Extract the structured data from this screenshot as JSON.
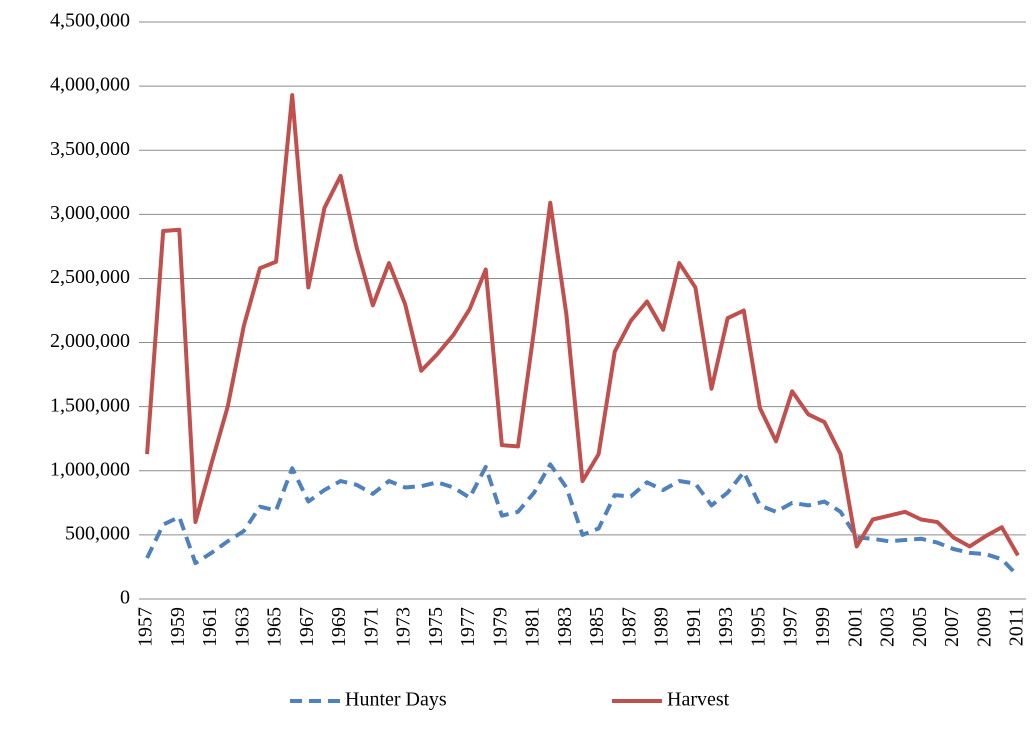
{
  "chart_data": {
    "type": "line",
    "categories": [
      "1957",
      null,
      "1959",
      null,
      "1961",
      null,
      "1963",
      null,
      "1965",
      null,
      "1967",
      null,
      "1969",
      null,
      "1971",
      null,
      "1973",
      null,
      "1975",
      null,
      "1977",
      null,
      "1979",
      null,
      "1981",
      null,
      "1983",
      null,
      "1985",
      null,
      "1987",
      null,
      "1989",
      null,
      "1991",
      null,
      "1993",
      null,
      "1995",
      null,
      "1997",
      null,
      "1999",
      null,
      "2001",
      null,
      "2003",
      null,
      "2005",
      null,
      "2007",
      null,
      "2009",
      null,
      "2011"
    ],
    "series": [
      {
        "name": "Hunter Days",
        "color": "#4f81bd",
        "dash": true,
        "values": [
          320000,
          580000,
          640000,
          280000,
          360000,
          450000,
          530000,
          720000,
          690000,
          1020000,
          760000,
          850000,
          920000,
          890000,
          820000,
          920000,
          870000,
          880000,
          910000,
          870000,
          790000,
          1030000,
          650000,
          680000,
          830000,
          1050000,
          870000,
          500000,
          550000,
          810000,
          800000,
          910000,
          850000,
          920000,
          900000,
          730000,
          830000,
          990000,
          730000,
          680000,
          750000,
          730000,
          760000,
          680000,
          480000,
          470000,
          450000,
          460000,
          470000,
          440000,
          390000,
          360000,
          350000,
          310000,
          180000
        ]
      },
      {
        "name": "Harvest",
        "color": "#c0504d",
        "dash": false,
        "values": [
          1130000,
          2870000,
          2880000,
          600000,
          1060000,
          1500000,
          2130000,
          2580000,
          2630000,
          3930000,
          2430000,
          3050000,
          3300000,
          2740000,
          2290000,
          2620000,
          2300000,
          1780000,
          1910000,
          2060000,
          2260000,
          2570000,
          1200000,
          1190000,
          2100000,
          3090000,
          2220000,
          920000,
          1130000,
          1930000,
          2170000,
          2320000,
          2100000,
          2620000,
          2430000,
          1640000,
          2190000,
          2250000,
          1490000,
          1230000,
          1620000,
          1440000,
          1380000,
          1130000,
          410000,
          620000,
          650000,
          680000,
          620000,
          600000,
          480000,
          410000,
          490000,
          560000,
          340000
        ]
      }
    ],
    "ylim": [
      0,
      4500000
    ],
    "yticks": [
      0,
      {
        "value": 500000,
        "label": "500,000"
      },
      {
        "value": 1000000,
        "label": "1,000,000"
      },
      {
        "value": 1500000,
        "label": "1,500,000"
      },
      {
        "value": 2000000,
        "label": "2,000,000"
      },
      {
        "value": 2500000,
        "label": "2,500,000"
      },
      {
        "value": 3000000,
        "label": "3,000,000"
      },
      {
        "value": 3500000,
        "label": "3,500,000"
      },
      {
        "value": 4000000,
        "label": "4,000,000"
      },
      {
        "value": 4500000,
        "label": "4,500,000"
      }
    ],
    "grid": true,
    "legend": "bottom"
  }
}
